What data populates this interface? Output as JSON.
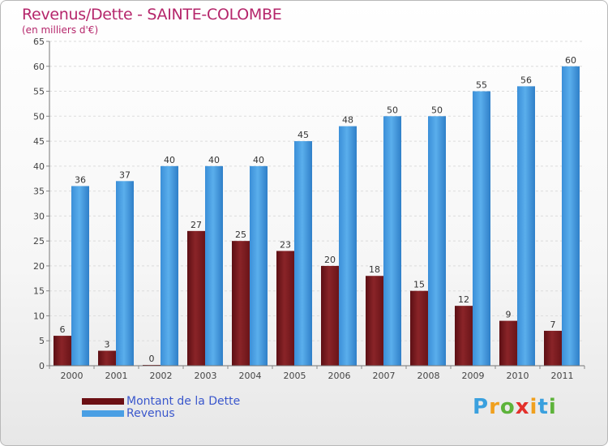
{
  "header": {
    "title": "Revenus/Dette - SAINTE-COLOMBE",
    "subtitle": "(en milliers d'€)"
  },
  "logo": {
    "letters": [
      "P",
      "r",
      "o",
      "x",
      "i",
      "t",
      "i"
    ],
    "colors": [
      "#3aa0de",
      "#f0a01e",
      "#5db33a",
      "#e3302b",
      "#f0a01e",
      "#3aa0de",
      "#5db33a"
    ]
  },
  "chart_data": {
    "type": "bar",
    "categories": [
      "2000",
      "2001",
      "2002",
      "2003",
      "2004",
      "2005",
      "2006",
      "2007",
      "2008",
      "2009",
      "2010",
      "2011"
    ],
    "series": [
      {
        "name": "Montant de la Dette",
        "values": [
          6,
          3,
          0,
          27,
          25,
          23,
          20,
          18,
          15,
          12,
          9,
          7
        ],
        "color": "#7a1b1f"
      },
      {
        "name": "Revenus",
        "values": [
          36,
          37,
          40,
          40,
          40,
          45,
          48,
          50,
          50,
          55,
          56,
          60
        ],
        "color": "#4a9fe4"
      }
    ],
    "ylim": [
      0,
      65
    ],
    "yticks": [
      0,
      5,
      10,
      15,
      20,
      25,
      30,
      35,
      40,
      45,
      50,
      55,
      60,
      65
    ],
    "grid": true,
    "legend_position": "bottom-left"
  }
}
